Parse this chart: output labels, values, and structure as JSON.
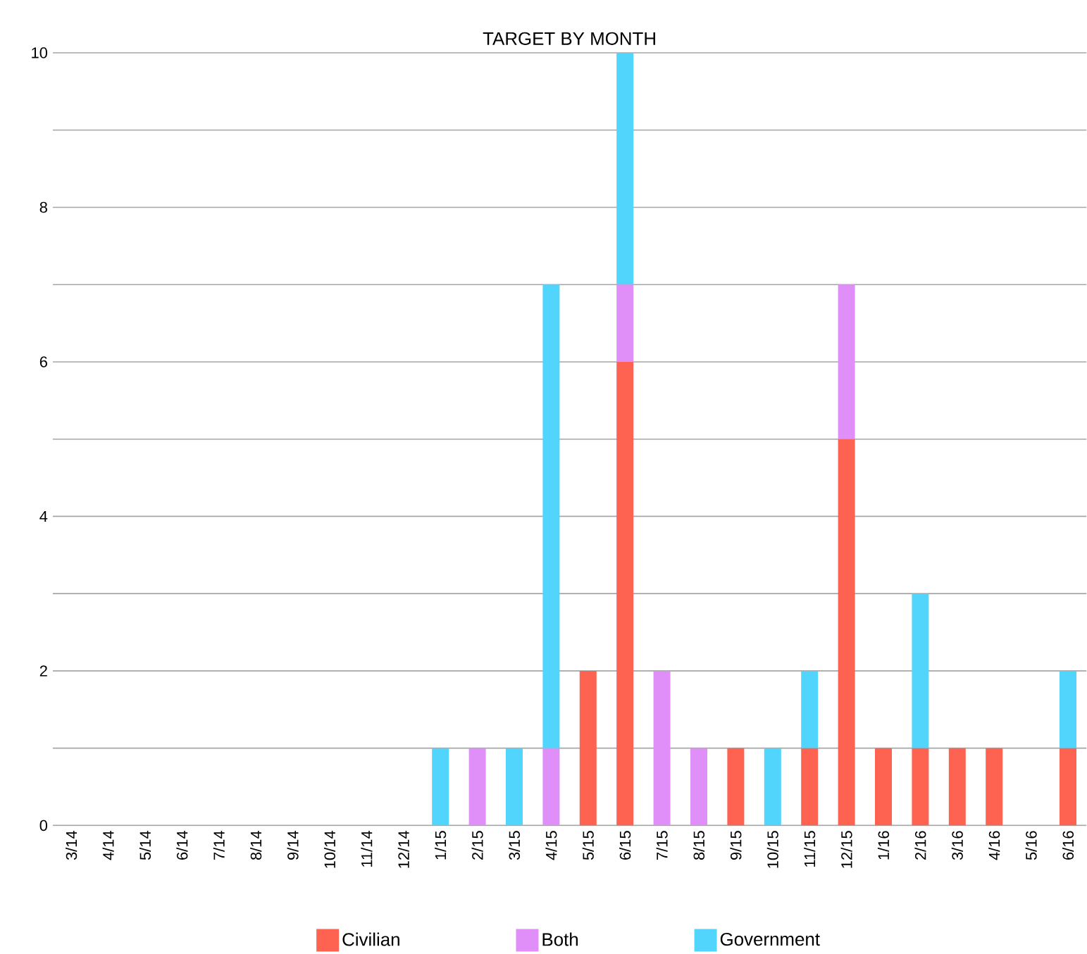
{
  "chart_data": {
    "type": "bar",
    "title": "TARGET BY MONTH",
    "stacked": true,
    "grid": "y",
    "legend": "bottom",
    "categories": [
      "3/14",
      "4/14",
      "5/14",
      "6/14",
      "7/14",
      "8/14",
      "9/14",
      "10/14",
      "11/14",
      "12/14",
      "1/15",
      "2/15",
      "3/15",
      "4/15",
      "5/15",
      "6/15",
      "7/15",
      "8/15",
      "9/15",
      "10/15",
      "11/15",
      "12/15",
      "1/16",
      "2/16",
      "3/16",
      "4/16",
      "5/16",
      "6/16"
    ],
    "series": [
      {
        "name": "Civilian",
        "color": "#fe6250",
        "values": [
          0,
          0,
          0,
          0,
          0,
          0,
          0,
          0,
          0,
          0,
          0,
          0,
          0,
          0,
          2,
          6,
          0,
          0,
          1,
          0,
          1,
          5,
          1,
          1,
          1,
          1,
          0,
          1
        ]
      },
      {
        "name": "Both",
        "color": "#e08ff8",
        "values": [
          0,
          0,
          0,
          0,
          0,
          0,
          0,
          0,
          0,
          0,
          0,
          1,
          0,
          1,
          0,
          1,
          2,
          1,
          0,
          0,
          0,
          2,
          0,
          0,
          0,
          0,
          0,
          0
        ]
      },
      {
        "name": "Government",
        "color": "#52d5fc",
        "values": [
          0,
          0,
          0,
          0,
          0,
          0,
          0,
          0,
          0,
          0,
          1,
          0,
          1,
          6,
          0,
          3,
          0,
          0,
          0,
          1,
          1,
          0,
          0,
          2,
          0,
          0,
          0,
          1
        ]
      }
    ],
    "ylim": [
      0,
      10
    ],
    "yticks": [
      0,
      {
        "value": 1,
        "label": null
      },
      2,
      {
        "value": 3,
        "label": null
      },
      4,
      {
        "value": 5,
        "label": null
      },
      6,
      {
        "value": 7,
        "label": null
      },
      8,
      {
        "value": 9,
        "label": null
      },
      10
    ]
  }
}
